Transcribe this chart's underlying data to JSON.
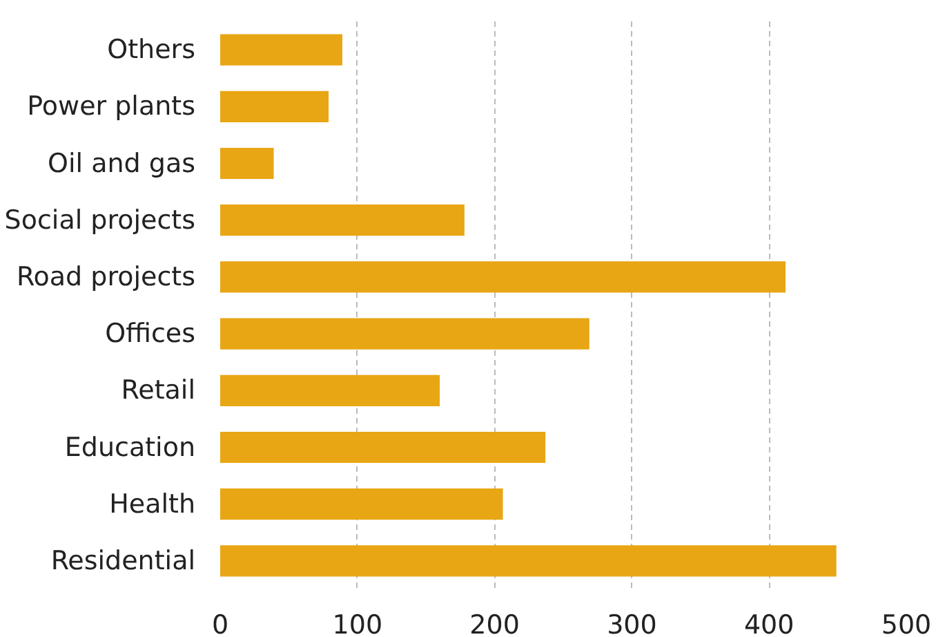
{
  "chart_data": {
    "type": "bar",
    "orientation": "horizontal",
    "categories": [
      "Others",
      "Power plants",
      "Oil and gas",
      "Social projects",
      "Road projects",
      "Offices",
      "Retail",
      "Education",
      "Health",
      "Residential"
    ],
    "values": [
      89,
      79,
      39,
      178,
      412,
      269,
      160,
      237,
      206,
      449
    ],
    "color": "#e8a614",
    "xlim": [
      0,
      500
    ],
    "xticks": [
      0,
      100,
      200,
      300,
      400,
      500
    ],
    "grid": "x"
  }
}
